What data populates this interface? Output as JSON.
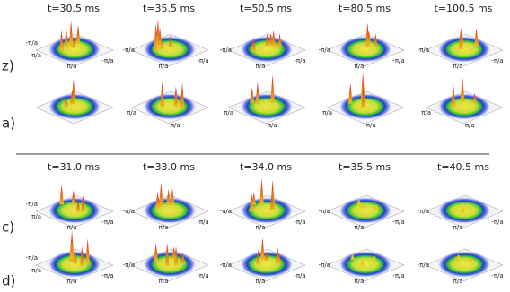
{
  "top_times": [
    "t=30.5 ms",
    "t=35.5 ms",
    "t=50.5 ms",
    "t=80.5 ms",
    "t=100.5 ms"
  ],
  "bottom_times": [
    "t=31.0 ms",
    "t=33.0 ms",
    "t=34.0 ms",
    "t=35.5 ms",
    "t=40.5 ms"
  ],
  "rows": [
    {
      "label": "z)",
      "panels": [
        {
          "axis_labels": [
            "-π/a",
            "π/a",
            "π/a",
            "-π/a"
          ]
        },
        {
          "axis_labels": [
            "-π/a",
            "π/a",
            "-π/a"
          ]
        },
        {
          "axis_labels": [
            "-π/a",
            "π/a",
            "-π/a"
          ]
        },
        {
          "axis_labels": [
            "-π/a",
            "π/a",
            "-π/a"
          ]
        },
        {
          "axis_labels": [
            "-π/a",
            "π/a",
            "-π/a"
          ]
        }
      ]
    },
    {
      "label": "a)",
      "panels": [
        {
          "axis_labels": []
        },
        {
          "axis_labels": [
            "π/a",
            "-π/a"
          ]
        },
        {
          "axis_labels": [
            "π/a",
            "-π/a"
          ]
        },
        {
          "axis_labels": [
            "π/a",
            "-π/a"
          ]
        },
        {
          "axis_labels": [
            "π/a",
            "-π/a"
          ]
        }
      ]
    },
    {
      "label": "c)",
      "panels": [
        {
          "axis_labels": [
            "-π/a",
            "π/a",
            "π/a",
            "-π/a"
          ]
        },
        {
          "axis_labels": [
            "-π/a",
            "π/a",
            "-π/a"
          ]
        },
        {
          "axis_labels": [
            "-π/a",
            "π/a",
            "-π/a"
          ]
        },
        {
          "axis_labels": [
            "-π/a",
            "π/a",
            "-π/a"
          ]
        },
        {
          "axis_labels": [
            "-π/a",
            "π/a",
            "-π/a"
          ]
        }
      ]
    },
    {
      "label": "d)",
      "panels": [
        {
          "axis_labels": [
            "-π/a",
            "π/a",
            "π/a",
            "-π/a"
          ]
        },
        {
          "axis_labels": [
            "-π/a",
            "π/a",
            "-π/a"
          ]
        },
        {
          "axis_labels": [
            "-π/a",
            "π/a",
            "-π/a"
          ]
        },
        {
          "axis_labels": [
            "-π/a",
            "π/a",
            "-π/a"
          ]
        },
        {
          "axis_labels": [
            "-π/a",
            "π/a",
            "-π/a"
          ]
        }
      ]
    }
  ]
}
